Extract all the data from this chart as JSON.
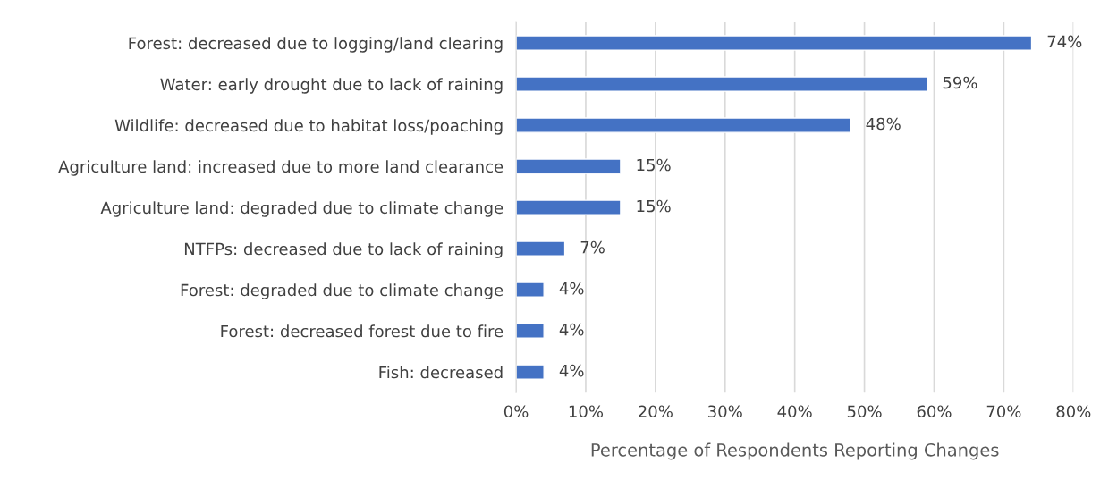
{
  "chart_data": {
    "type": "bar",
    "orientation": "horizontal",
    "xlabel": "Percentage of Respondents Reporting Changes",
    "categories": [
      "Forest: decreased due to logging/land clearing",
      "Water: early drought due to lack of raining",
      "Wildlife: decreased due to habitat loss/poaching",
      "Agriculture land: increased due to more land clearance",
      "Agriculture land: degraded due to climate change",
      "NTFPs: decreased due to lack of raining",
      "Forest: degraded due to climate change",
      "Forest: decreased forest due to fire",
      "Fish: decreased"
    ],
    "values": [
      74,
      59,
      48,
      15,
      15,
      7,
      4,
      4,
      4
    ],
    "value_labels": [
      "74%",
      "59%",
      "48%",
      "15%",
      "15%",
      "7%",
      "4%",
      "4%",
      "4%"
    ],
    "color": "#4472c4",
    "xlim": [
      0,
      80
    ],
    "xticks": [
      {
        "value": 0,
        "label": "0%"
      },
      {
        "value": 10,
        "label": "10%"
      },
      {
        "value": 20,
        "label": "20%"
      },
      {
        "value": 30,
        "label": "30%"
      },
      {
        "value": 40,
        "label": "40%"
      },
      {
        "value": 50,
        "label": "50%"
      },
      {
        "value": 60,
        "label": "60%"
      },
      {
        "value": 70,
        "label": "70%"
      },
      {
        "value": 80,
        "label": "80%"
      }
    ],
    "grid": "x",
    "legend": false
  }
}
